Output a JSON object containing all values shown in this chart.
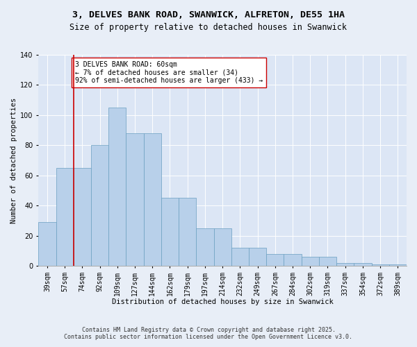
{
  "title_line1": "3, DELVES BANK ROAD, SWANWICK, ALFRETON, DE55 1HA",
  "title_line2": "Size of property relative to detached houses in Swanwick",
  "xlabel": "Distribution of detached houses by size in Swanwick",
  "ylabel": "Number of detached properties",
  "categories": [
    "39sqm",
    "57sqm",
    "74sqm",
    "92sqm",
    "109sqm",
    "127sqm",
    "144sqm",
    "162sqm",
    "179sqm",
    "197sqm",
    "214sqm",
    "232sqm",
    "249sqm",
    "267sqm",
    "284sqm",
    "302sqm",
    "319sqm",
    "337sqm",
    "354sqm",
    "372sqm",
    "389sqm"
  ],
  "bar_values": [
    29,
    65,
    65,
    80,
    105,
    88,
    88,
    45,
    45,
    25,
    25,
    12,
    12,
    8,
    8,
    6,
    6,
    2,
    2,
    1,
    1
  ],
  "bar_color": "#b8d0ea",
  "bar_edge_color": "#6a9fc0",
  "vline_color": "#cc0000",
  "annotation_text": "3 DELVES BANK ROAD: 60sqm\n← 7% of detached houses are smaller (34)\n92% of semi-detached houses are larger (433) →",
  "annotation_box_color": "#ffffff",
  "annotation_box_edge": "#cc0000",
  "ylim": [
    0,
    140
  ],
  "yticks": [
    0,
    20,
    40,
    60,
    80,
    100,
    120,
    140
  ],
  "bg_color": "#e8eef7",
  "plot_bg_color": "#dce6f5",
  "footer_line1": "Contains HM Land Registry data © Crown copyright and database right 2025.",
  "footer_line2": "Contains public sector information licensed under the Open Government Licence v3.0.",
  "title_fontsize": 9.5,
  "subtitle_fontsize": 8.5,
  "axis_label_fontsize": 7.5,
  "tick_fontsize": 7,
  "annotation_fontsize": 7,
  "footer_fontsize": 6
}
